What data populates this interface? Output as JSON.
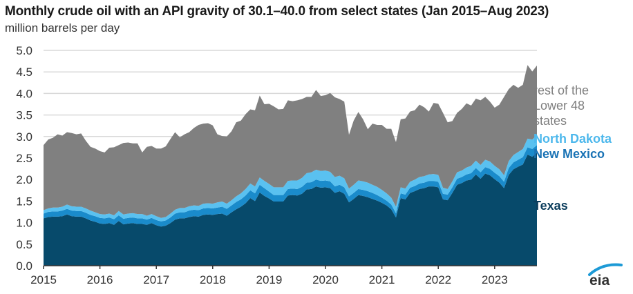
{
  "chart_data": {
    "type": "area",
    "stacked": true,
    "title": "Monthly crude oil with an API gravity of 30.1–40.0 from select states (Jan 2015–Aug 2023)",
    "ylabel": "million barrels per day",
    "xlabel": "",
    "ylim": [
      0,
      5
    ],
    "yticks": [
      "0.0",
      "0.5",
      "1.0",
      "1.5",
      "2.0",
      "2.5",
      "3.0",
      "3.5",
      "4.0",
      "4.5",
      "5.0"
    ],
    "xticks": [
      "2015",
      "2016",
      "2017",
      "2018",
      "2019",
      "2020",
      "2021",
      "2022",
      "2023"
    ],
    "x_start": "Jan 2015",
    "x_end": "Aug 2023",
    "grid": true,
    "legend_placement": "right-inline",
    "series": [
      {
        "name": "Texas",
        "color": "#074a6b",
        "label_color": "#0b3d5c",
        "values": [
          1.1,
          1.13,
          1.14,
          1.14,
          1.15,
          1.19,
          1.15,
          1.14,
          1.14,
          1.1,
          1.05,
          1.02,
          0.98,
          0.97,
          0.99,
          0.95,
          1.04,
          0.96,
          0.98,
          0.99,
          0.97,
          0.97,
          0.95,
          0.99,
          0.94,
          0.91,
          0.93,
          0.99,
          1.07,
          1.1,
          1.1,
          1.13,
          1.15,
          1.14,
          1.18,
          1.19,
          1.18,
          1.2,
          1.21,
          1.16,
          1.24,
          1.31,
          1.37,
          1.45,
          1.57,
          1.5,
          1.7,
          1.62,
          1.56,
          1.49,
          1.49,
          1.49,
          1.63,
          1.64,
          1.63,
          1.67,
          1.77,
          1.78,
          1.84,
          1.81,
          1.82,
          1.8,
          1.69,
          1.73,
          1.67,
          1.47,
          1.55,
          1.64,
          1.62,
          1.59,
          1.55,
          1.51,
          1.46,
          1.4,
          1.31,
          1.12,
          1.57,
          1.54,
          1.69,
          1.73,
          1.78,
          1.8,
          1.84,
          1.84,
          1.82,
          1.54,
          1.52,
          1.69,
          1.88,
          1.92,
          1.98,
          2.0,
          2.12,
          2.02,
          2.14,
          2.1,
          2.01,
          1.93,
          1.8,
          2.11,
          2.24,
          2.3,
          2.35,
          2.58,
          2.53,
          2.62
        ]
      },
      {
        "name": "New Mexico",
        "color": "#1a8bcb",
        "label_color": "#1a73b5",
        "values": [
          0.11,
          0.12,
          0.12,
          0.12,
          0.13,
          0.13,
          0.13,
          0.13,
          0.13,
          0.13,
          0.13,
          0.13,
          0.13,
          0.13,
          0.13,
          0.13,
          0.13,
          0.13,
          0.13,
          0.13,
          0.13,
          0.13,
          0.12,
          0.12,
          0.12,
          0.12,
          0.12,
          0.13,
          0.14,
          0.14,
          0.14,
          0.15,
          0.15,
          0.15,
          0.15,
          0.15,
          0.15,
          0.15,
          0.16,
          0.16,
          0.16,
          0.17,
          0.17,
          0.18,
          0.18,
          0.18,
          0.18,
          0.18,
          0.16,
          0.15,
          0.15,
          0.15,
          0.15,
          0.15,
          0.15,
          0.16,
          0.16,
          0.16,
          0.16,
          0.16,
          0.16,
          0.16,
          0.15,
          0.15,
          0.15,
          0.14,
          0.14,
          0.14,
          0.14,
          0.14,
          0.14,
          0.13,
          0.12,
          0.11,
          0.11,
          0.1,
          0.11,
          0.11,
          0.12,
          0.12,
          0.13,
          0.13,
          0.13,
          0.13,
          0.13,
          0.13,
          0.13,
          0.13,
          0.14,
          0.14,
          0.14,
          0.15,
          0.15,
          0.15,
          0.15,
          0.15,
          0.15,
          0.15,
          0.15,
          0.16,
          0.16,
          0.16,
          0.17,
          0.17,
          0.18,
          0.18
        ]
      },
      {
        "name": "North Dakota",
        "color": "#5ac1f0",
        "label_color": "#4db8ec",
        "values": [
          0.08,
          0.08,
          0.09,
          0.09,
          0.09,
          0.1,
          0.1,
          0.1,
          0.1,
          0.1,
          0.1,
          0.09,
          0.09,
          0.09,
          0.09,
          0.09,
          0.1,
          0.1,
          0.1,
          0.1,
          0.1,
          0.1,
          0.09,
          0.09,
          0.09,
          0.08,
          0.08,
          0.09,
          0.09,
          0.1,
          0.1,
          0.1,
          0.1,
          0.1,
          0.11,
          0.11,
          0.11,
          0.12,
          0.12,
          0.12,
          0.12,
          0.13,
          0.14,
          0.15,
          0.16,
          0.16,
          0.17,
          0.17,
          0.18,
          0.18,
          0.18,
          0.18,
          0.19,
          0.19,
          0.2,
          0.21,
          0.22,
          0.23,
          0.23,
          0.23,
          0.23,
          0.22,
          0.22,
          0.21,
          0.21,
          0.18,
          0.19,
          0.2,
          0.2,
          0.2,
          0.19,
          0.19,
          0.18,
          0.17,
          0.16,
          0.15,
          0.14,
          0.14,
          0.14,
          0.15,
          0.15,
          0.15,
          0.15,
          0.16,
          0.16,
          0.14,
          0.13,
          0.14,
          0.15,
          0.15,
          0.16,
          0.17,
          0.17,
          0.17,
          0.17,
          0.17,
          0.16,
          0.16,
          0.15,
          0.16,
          0.17,
          0.18,
          0.19,
          0.2,
          0.22,
          0.23
        ]
      },
      {
        "name": "rest of the Lower 48 states",
        "color": "#808080",
        "label_color": "#7f7f7f",
        "values": [
          1.51,
          1.6,
          1.62,
          1.7,
          1.65,
          1.68,
          1.7,
          1.68,
          1.7,
          1.57,
          1.48,
          1.48,
          1.46,
          1.44,
          1.53,
          1.58,
          1.53,
          1.66,
          1.65,
          1.62,
          1.64,
          1.43,
          1.6,
          1.58,
          1.57,
          1.61,
          1.64,
          1.73,
          1.8,
          1.64,
          1.71,
          1.72,
          1.8,
          1.88,
          1.86,
          1.86,
          1.82,
          1.58,
          1.52,
          1.56,
          1.6,
          1.72,
          1.69,
          1.74,
          1.72,
          1.77,
          1.9,
          1.78,
          1.86,
          1.88,
          1.81,
          1.82,
          1.87,
          1.84,
          1.86,
          1.83,
          1.77,
          1.75,
          1.85,
          1.74,
          1.75,
          1.83,
          1.85,
          1.78,
          1.78,
          1.25,
          1.49,
          1.59,
          1.44,
          1.24,
          1.42,
          1.44,
          1.51,
          1.5,
          1.6,
          1.5,
          1.58,
          1.63,
          1.63,
          1.61,
          1.68,
          1.6,
          1.46,
          1.65,
          1.65,
          1.74,
          1.55,
          1.4,
          1.38,
          1.43,
          1.49,
          1.4,
          1.44,
          1.5,
          1.46,
          1.39,
          1.35,
          1.5,
          1.82,
          1.67,
          1.63,
          1.49,
          1.49,
          1.71,
          1.58,
          1.62
        ]
      }
    ]
  },
  "header": {
    "title": "Monthly crude oil with an API gravity of 30.1–40.0 from select states (Jan 2015–Aug 2023)",
    "subtitle": "million barrels per day"
  },
  "legend": {
    "rest_line1": "rest of the",
    "rest_line2": "Lower 48",
    "rest_line3": "states",
    "north_dakota": "North Dakota",
    "new_mexico": "New Mexico",
    "texas": "Texas"
  },
  "logo": {
    "text": "eia",
    "arc_color": "#1d9ad6"
  }
}
